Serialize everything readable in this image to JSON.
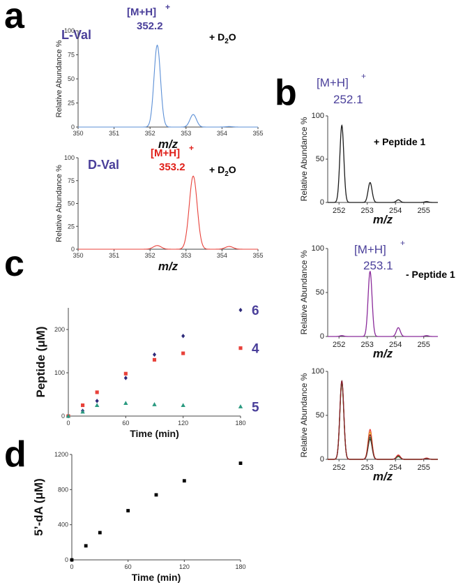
{
  "colors": {
    "l_val_spectrum": "#5b8fd6",
    "d_val_spectrum": "#e8413a",
    "ion_label_purple": "#4a3f9a",
    "ion_label_red": "#e0201a",
    "peptide_minus_spectrum": "#8a2a9a",
    "series_6": "#2e2a7a",
    "series_4": "#e8413a",
    "series_5": "#2a9a80"
  },
  "panels": {
    "a": "a",
    "b": "b",
    "c": "c",
    "d": "d"
  },
  "labels": {
    "l_val": "L-Val",
    "d_val": "D-Val",
    "d2o_a_top": "+ D",
    "d2o_a_bottom": "+ D",
    "d2o_sub": "2",
    "d2o_o": "O",
    "ion_mh": "[M+H]",
    "ion_plus": "+",
    "peptide_plus": "+ Peptide 1",
    "peptide_minus": "- Peptide 1"
  },
  "chart_data": [
    {
      "id": "a1",
      "type": "line",
      "title": "L-Val",
      "annotation": "+ D2O",
      "ion_label": "[M+H]+",
      "peak_label": "352.2",
      "xlabel": "m/z",
      "ylabel": "Relative Abundance %",
      "xlim": [
        350,
        355
      ],
      "ylim": [
        0,
        100
      ],
      "xticks": [
        "350",
        "351",
        "352",
        "353",
        "354",
        "355"
      ],
      "yticks": [
        "0",
        "25",
        "50",
        "75",
        "100"
      ],
      "peaks": [
        {
          "x": 352.2,
          "y": 85
        },
        {
          "x": 353.2,
          "y": 13
        },
        {
          "x": 354.2,
          "y": 0.5
        }
      ]
    },
    {
      "id": "a2",
      "type": "line",
      "title": "D-Val",
      "annotation": "+ D2O",
      "ion_label": "[M+H]+",
      "peak_label": "353.2",
      "xlabel": "m/z",
      "ylabel": "Relative Abundance %",
      "xlim": [
        350,
        355
      ],
      "ylim": [
        0,
        100
      ],
      "xticks": [
        "350",
        "351",
        "352",
        "353",
        "354",
        "355"
      ],
      "yticks": [
        "0",
        "25",
        "50",
        "75",
        "100"
      ],
      "peaks": [
        {
          "x": 352.2,
          "y": 4
        },
        {
          "x": 353.2,
          "y": 80
        },
        {
          "x": 354.2,
          "y": 3
        }
      ]
    },
    {
      "id": "b1",
      "type": "line",
      "annotation": "+ Peptide 1",
      "ion_label": "[M+H]+",
      "peak_label": "252.1",
      "xlabel": "m/z",
      "ylabel": "Relative Abundance %",
      "xlim": [
        251.6,
        255.5
      ],
      "ylim": [
        0,
        100
      ],
      "xticks": [
        "252",
        "253",
        "254",
        "255"
      ],
      "yticks": [
        "0",
        "50",
        "100"
      ],
      "peaks": [
        {
          "x": 252.1,
          "y": 89
        },
        {
          "x": 253.1,
          "y": 23
        },
        {
          "x": 254.1,
          "y": 3
        },
        {
          "x": 255.1,
          "y": 1
        }
      ]
    },
    {
      "id": "b2",
      "type": "line",
      "annotation": "- Peptide 1",
      "ion_label": "[M+H]+",
      "peak_label": "253.1",
      "xlabel": "m/z",
      "ylabel": "Relative Abundance %",
      "xlim": [
        251.6,
        255.5
      ],
      "ylim": [
        0,
        100
      ],
      "xticks": [
        "252",
        "253",
        "254",
        "255"
      ],
      "yticks": [
        "0",
        "50",
        "100"
      ],
      "peaks": [
        {
          "x": 252.1,
          "y": 1
        },
        {
          "x": 253.1,
          "y": 74
        },
        {
          "x": 254.1,
          "y": 10
        },
        {
          "x": 255.1,
          "y": 1
        }
      ]
    },
    {
      "id": "b3",
      "type": "line",
      "xlabel": "m/z",
      "ylabel": "Relative Abundance %",
      "xlim": [
        251.6,
        255.5
      ],
      "ylim": [
        0,
        100
      ],
      "xticks": [
        "252",
        "253",
        "254",
        "255"
      ],
      "yticks": [
        "0",
        "50",
        "100"
      ],
      "series": [
        {
          "color": "#1a1a1a",
          "peaks": [
            {
              "x": 252.1,
              "y": 89
            },
            {
              "x": 253.1,
              "y": 23
            },
            {
              "x": 254.1,
              "y": 3
            },
            {
              "x": 255.1,
              "y": 1
            }
          ]
        },
        {
          "color": "#e8413a",
          "peaks": [
            {
              "x": 252.1,
              "y": 88
            },
            {
              "x": 253.1,
              "y": 34
            },
            {
              "x": 254.1,
              "y": 5
            },
            {
              "x": 255.1,
              "y": 1.5
            }
          ]
        },
        {
          "color": "#e8a020",
          "peaks": [
            {
              "x": 252.1,
              "y": 87
            },
            {
              "x": 253.1,
              "y": 31
            },
            {
              "x": 254.1,
              "y": 4
            },
            {
              "x": 255.1,
              "y": 1
            }
          ]
        },
        {
          "color": "#2a9a40",
          "peaks": [
            {
              "x": 252.1,
              "y": 86
            },
            {
              "x": 253.1,
              "y": 25
            },
            {
              "x": 254.1,
              "y": 3
            },
            {
              "x": 255.1,
              "y": 1
            }
          ]
        },
        {
          "color": "#8a1a2a",
          "peaks": [
            {
              "x": 252.1,
              "y": 89
            },
            {
              "x": 253.1,
              "y": 28
            },
            {
              "x": 254.1,
              "y": 4
            },
            {
              "x": 255.1,
              "y": 1
            }
          ]
        }
      ]
    },
    {
      "id": "c",
      "type": "scatter",
      "xlabel": "Time (min)",
      "ylabel": "Peptide (μM)",
      "xlim": [
        0,
        180
      ],
      "ylim": [
        0,
        250
      ],
      "xticks": [
        "0",
        "60",
        "120",
        "180"
      ],
      "yticks": [
        "0",
        "100",
        "200"
      ],
      "series": [
        {
          "name": "6",
          "marker": "diamond",
          "x": [
            0,
            15,
            30,
            60,
            90,
            120,
            180
          ],
          "values": [
            0,
            12,
            35,
            88,
            142,
            185,
            245
          ]
        },
        {
          "name": "4",
          "marker": "square",
          "x": [
            0,
            15,
            30,
            60,
            90,
            120,
            180
          ],
          "values": [
            0,
            25,
            55,
            98,
            130,
            145,
            157
          ]
        },
        {
          "name": "5",
          "marker": "triangle",
          "x": [
            0,
            15,
            30,
            60,
            90,
            120,
            180
          ],
          "values": [
            0,
            10,
            25,
            30,
            27,
            25,
            22
          ]
        }
      ]
    },
    {
      "id": "d",
      "type": "scatter",
      "xlabel": "Time (min)",
      "ylabel": "5’-dA (μM)",
      "xlim": [
        0,
        180
      ],
      "ylim": [
        0,
        1200
      ],
      "xticks": [
        "0",
        "60",
        "120",
        "180"
      ],
      "yticks": [
        "0",
        "400",
        "800",
        "1200"
      ],
      "series": [
        {
          "marker": "square",
          "x": [
            0,
            15,
            30,
            60,
            90,
            120,
            180
          ],
          "values": [
            0,
            160,
            310,
            560,
            740,
            900,
            1100
          ]
        }
      ]
    }
  ]
}
